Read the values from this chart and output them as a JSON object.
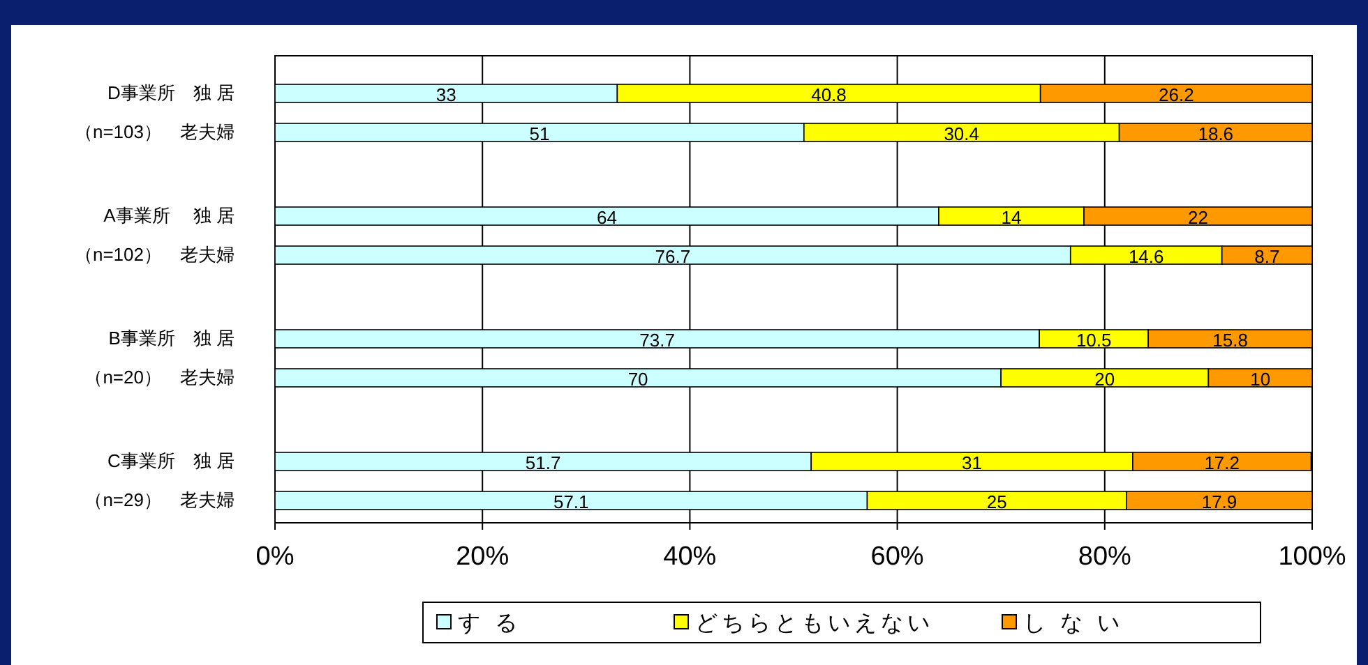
{
  "chart_data": {
    "type": "bar",
    "orientation": "horizontal",
    "stacked": true,
    "data_labels": true,
    "grid": "x",
    "legend": "bottom",
    "categories": [
      "D事業所　独 居",
      "（n=103）　老夫婦",
      "A事業所　 独 居",
      "（n=102）　老夫婦",
      "B事業所　独 居",
      "（n=20）　老夫婦",
      "C事業所　独 居",
      "（n=29）　老夫婦"
    ],
    "series": [
      {
        "name": "す る",
        "color": "#ccffff",
        "values": [
          33,
          51,
          64,
          76.7,
          73.7,
          70,
          51.7,
          57.1
        ]
      },
      {
        "name": "どちらともいえない",
        "color": "#ffff00",
        "values": [
          40.8,
          30.4,
          14,
          14.6,
          10.5,
          20,
          31,
          25
        ]
      },
      {
        "name": "し な い",
        "color": "#ff9900",
        "values": [
          26.2,
          18.6,
          22,
          8.7,
          15.8,
          10,
          17.2,
          17.9
        ]
      }
    ],
    "xlim": [
      0,
      100
    ],
    "xticks": [
      {
        "value": 0,
        "label": "0%"
      },
      {
        "value": 20,
        "label": "20%"
      },
      {
        "value": 40,
        "label": "40%"
      },
      {
        "value": 60,
        "label": "60%"
      },
      {
        "value": 80,
        "label": "80%"
      },
      {
        "value": 100,
        "label": "100%"
      }
    ]
  }
}
